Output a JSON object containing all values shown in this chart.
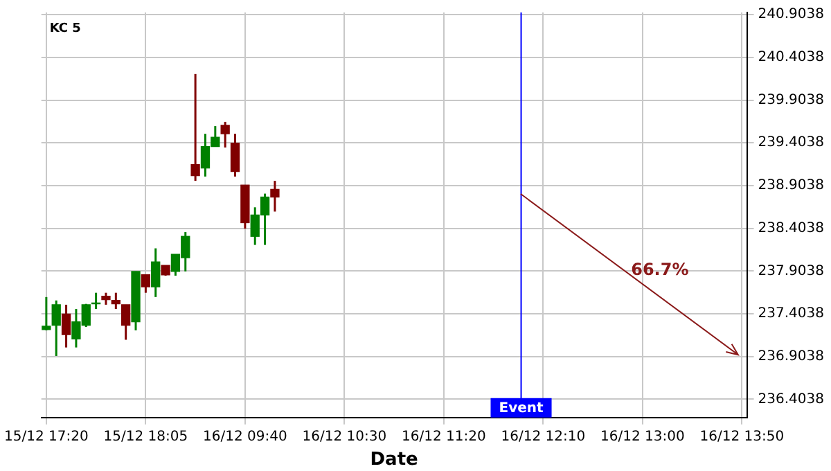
{
  "chart_data": {
    "type": "candlestick",
    "title": "KC 5",
    "xlabel": "Date",
    "categories": [
      "15/12 17:20",
      null,
      null,
      null,
      null,
      null,
      null,
      null,
      null,
      null,
      "15/12 18:05",
      null,
      null,
      null,
      null,
      null,
      null,
      null,
      null,
      null,
      "16/12 09:40",
      null,
      null,
      null,
      null,
      null,
      null,
      null,
      null,
      null,
      "16/12 10:30",
      null,
      null,
      null,
      null,
      null,
      null,
      null,
      null,
      null,
      "16/12 11:20",
      null,
      null,
      null,
      null,
      null,
      null,
      null,
      null,
      null,
      "16/12 12:10",
      null,
      null,
      null,
      null,
      null,
      null,
      null,
      null,
      null,
      "16/12 13:00",
      null,
      null,
      null,
      null,
      null,
      null,
      null,
      null,
      null,
      "16/12 13:50"
    ],
    "ohlc": [
      [
        237.22,
        237.6,
        237.21,
        237.26
      ],
      [
        237.27,
        237.56,
        236.91,
        237.51
      ],
      [
        237.4,
        237.51,
        237.01,
        237.16
      ],
      [
        237.11,
        237.46,
        237.01,
        237.31
      ],
      [
        237.27,
        237.52,
        237.25,
        237.51
      ],
      [
        237.52,
        237.65,
        237.46,
        237.53
      ],
      [
        237.61,
        237.65,
        237.51,
        237.57
      ],
      [
        237.56,
        237.65,
        237.46,
        237.52
      ],
      [
        237.51,
        237.51,
        237.1,
        237.27
      ],
      [
        237.31,
        237.9,
        237.21,
        237.9
      ],
      [
        237.86,
        237.86,
        237.65,
        237.72
      ],
      [
        237.72,
        238.17,
        237.6,
        238.01
      ],
      [
        237.97,
        237.97,
        237.85,
        237.86
      ],
      [
        237.9,
        238.1,
        237.85,
        238.1
      ],
      [
        238.06,
        238.36,
        237.9,
        238.31
      ],
      [
        239.15,
        240.21,
        238.96,
        239.02
      ],
      [
        239.11,
        239.51,
        239.01,
        239.36
      ],
      [
        239.36,
        239.6,
        239.36,
        239.47
      ],
      [
        239.61,
        239.65,
        239.35,
        239.51
      ],
      [
        239.4,
        239.51,
        239.01,
        239.07
      ],
      [
        238.91,
        238.91,
        238.4,
        238.47
      ],
      [
        238.31,
        238.65,
        238.21,
        238.56
      ],
      [
        238.56,
        238.81,
        238.21,
        238.77
      ],
      [
        238.86,
        238.96,
        238.6,
        238.77
      ],
      null,
      null,
      null,
      null,
      null,
      null,
      null,
      null,
      null,
      null,
      null,
      null,
      null,
      null,
      null,
      null,
      null,
      null,
      null,
      null,
      null,
      null,
      null,
      null,
      null,
      null,
      null,
      null,
      null,
      null,
      null,
      null,
      null,
      null,
      null,
      null,
      null,
      null,
      null,
      null,
      null,
      null,
      null,
      null,
      null,
      null,
      null
    ],
    "colors": [
      "#008000",
      "#008000",
      "#800000",
      "#008000",
      "#008000",
      "#008000",
      "#800000",
      "#800000",
      "#800000",
      "#008000",
      "#800000",
      "#008000",
      "#800000",
      "#008000",
      "#008000",
      "#800000",
      "#008000",
      "#008000",
      "#800000",
      "#800000",
      "#800000",
      "#008000",
      "#008000",
      "#800000",
      null,
      null,
      null,
      null,
      null,
      null,
      null,
      null,
      null,
      null,
      null,
      null,
      null,
      null,
      null,
      null,
      null,
      null,
      null,
      null,
      null,
      null,
      null,
      null,
      null,
      null,
      null,
      null,
      null,
      null,
      null,
      null,
      null,
      null,
      null,
      null,
      null,
      null,
      null,
      null,
      null,
      null,
      null,
      null,
      null,
      null,
      null
    ],
    "ylim": [
      236.19,
      240.93
    ],
    "yticks": [
      236.4038,
      236.9038,
      237.4038,
      237.9038,
      238.4038,
      238.9038,
      239.4038,
      239.9038,
      240.4038,
      240.9038
    ],
    "annotations": [
      "66.7%",
      "Event"
    ],
    "grid": true
  }
}
